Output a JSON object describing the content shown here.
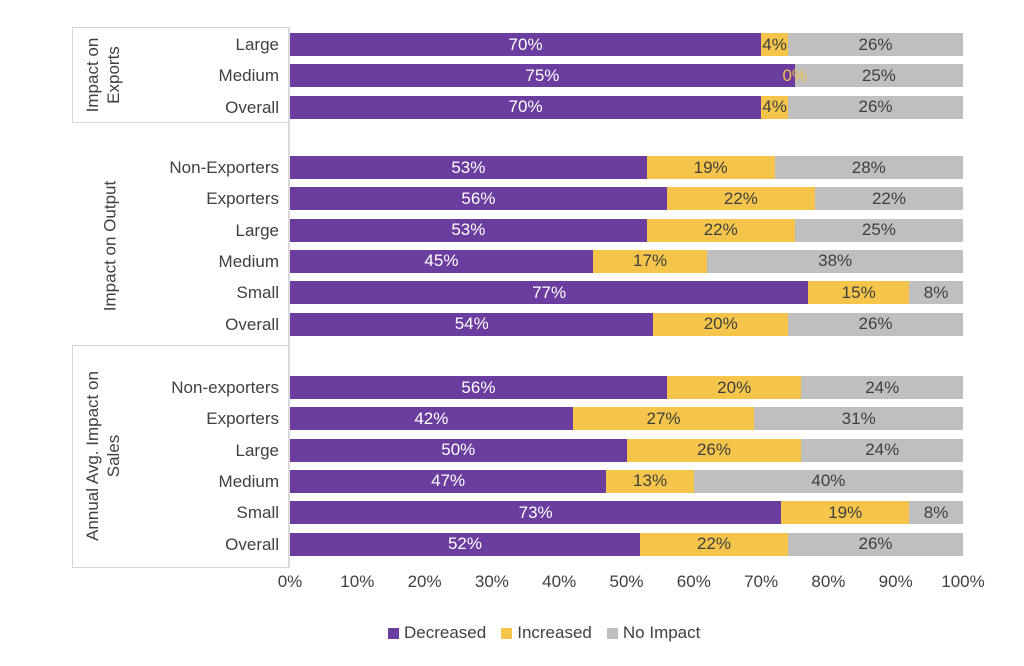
{
  "chart_data": {
    "type": "bar",
    "orientation": "horizontal",
    "stacked": true,
    "title": "",
    "xlabel": "",
    "ylabel": "",
    "xlim": [
      0,
      100
    ],
    "grid": false,
    "x_ticks": [
      "0%",
      "10%",
      "20%",
      "30%",
      "40%",
      "50%",
      "60%",
      "70%",
      "80%",
      "90%",
      "100%"
    ],
    "series_names": [
      "Decreased",
      "Increased",
      "No Impact"
    ],
    "legend": {
      "position": "bottom-center",
      "items": [
        {
          "label": "Decreased",
          "color": "#6a3d9e"
        },
        {
          "label": "Increased",
          "color": "#f4c54a"
        },
        {
          "label": "No Impact",
          "color": "#bfbfbf"
        }
      ]
    },
    "label_colors": {
      "on_decreased": "#ffffff",
      "on_increased": "#404040",
      "on_no_impact": "#404040",
      "zero_value": "#f2c24b"
    },
    "groups": [
      {
        "title": "Impact on Exports",
        "boxed": true,
        "rows": [
          {
            "label": "Large",
            "values": [
              70,
              4,
              26
            ]
          },
          {
            "label": "Medium",
            "values": [
              75,
              0,
              25
            ]
          },
          {
            "label": "Overall",
            "values": [
              70,
              4,
              26
            ]
          }
        ]
      },
      {
        "title": "Impact on Output",
        "boxed": false,
        "rows": [
          {
            "label": "Non-Exporters",
            "values": [
              53,
              19,
              28
            ]
          },
          {
            "label": "Exporters",
            "values": [
              56,
              22,
              22
            ]
          },
          {
            "label": "Large",
            "values": [
              53,
              22,
              25
            ]
          },
          {
            "label": "Medium",
            "values": [
              45,
              17,
              38
            ]
          },
          {
            "label": "Small",
            "values": [
              77,
              15,
              8
            ]
          },
          {
            "label": "Overall",
            "values": [
              54,
              20,
              26
            ]
          }
        ]
      },
      {
        "title": "Annual Avg. Impact on Sales",
        "boxed": true,
        "rows": [
          {
            "label": "Non-exporters",
            "values": [
              56,
              20,
              24
            ]
          },
          {
            "label": "Exporters",
            "values": [
              42,
              27,
              31
            ]
          },
          {
            "label": "Large",
            "values": [
              50,
              26,
              24
            ]
          },
          {
            "label": "Medium",
            "values": [
              47,
              13,
              40
            ]
          },
          {
            "label": "Small",
            "values": [
              73,
              19,
              8
            ]
          },
          {
            "label": "Overall",
            "values": [
              52,
              22,
              26
            ]
          }
        ]
      }
    ]
  }
}
